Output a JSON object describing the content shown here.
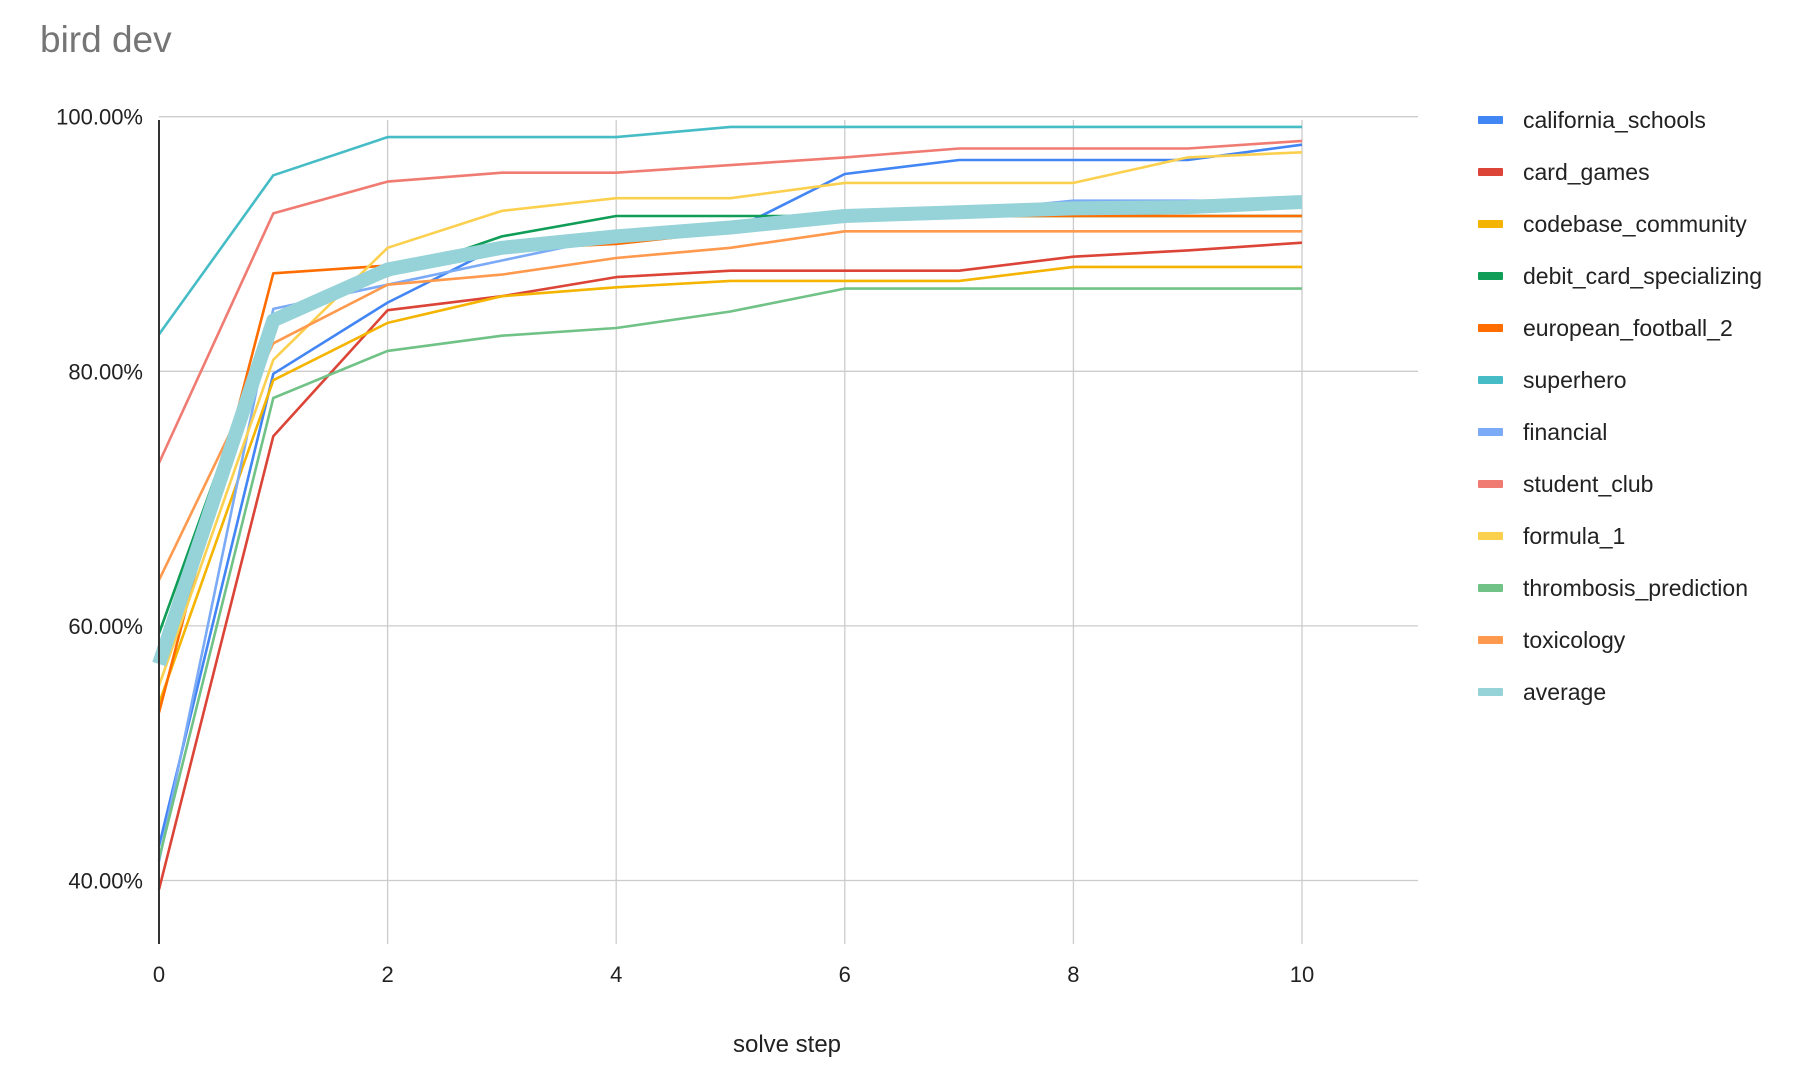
{
  "chart_data": {
    "type": "line",
    "title": "bird dev",
    "xlabel": "solve step",
    "ylabel": "",
    "xlim": [
      0,
      11
    ],
    "ylim": [
      35,
      100
    ],
    "x_ticks": [
      0,
      2,
      4,
      6,
      8,
      10
    ],
    "x_tick_labels": [
      "0",
      "2",
      "4",
      "6",
      "8",
      "10"
    ],
    "y_ticks": [
      40,
      60,
      80,
      100
    ],
    "y_tick_labels": [
      "40.00%",
      "60.00%",
      "80.00%",
      "100.00%"
    ],
    "grid": true,
    "legend_position": "right",
    "x": [
      0,
      1,
      2,
      3,
      4,
      5,
      6,
      7,
      8,
      9,
      10
    ],
    "series": [
      {
        "name": "california_schools",
        "color": "#4285f4",
        "values": [
          42.7,
          79.8,
          85.4,
          89.9,
          90.4,
          91.0,
          95.5,
          96.6,
          96.6,
          96.6,
          97.8
        ]
      },
      {
        "name": "card_games",
        "color": "#db4437",
        "values": [
          39.3,
          74.9,
          84.8,
          85.9,
          87.4,
          87.9,
          87.9,
          87.9,
          89.0,
          89.5,
          90.1
        ]
      },
      {
        "name": "codebase_community",
        "color": "#f4b400",
        "values": [
          53.9,
          79.3,
          83.8,
          85.9,
          86.6,
          87.1,
          87.1,
          87.1,
          88.2,
          88.2,
          88.2
        ]
      },
      {
        "name": "debit_card_specializing",
        "color": "#0f9d58",
        "values": [
          59.4,
          84.4,
          87.5,
          90.6,
          92.2,
          92.2,
          92.2,
          92.2,
          92.2,
          92.2,
          92.2
        ]
      },
      {
        "name": "european_football_2",
        "color": "#ff6d01",
        "values": [
          53.2,
          87.7,
          88.3,
          89.6,
          90.0,
          91.0,
          92.2,
          92.2,
          92.2,
          92.2,
          92.2
        ]
      },
      {
        "name": "superhero",
        "color": "#46bdc6",
        "values": [
          82.9,
          95.4,
          98.4,
          98.4,
          98.4,
          99.2,
          99.2,
          99.2,
          99.2,
          99.2,
          99.2
        ]
      },
      {
        "name": "financial",
        "color": "#7baaf7",
        "values": [
          41.5,
          84.9,
          86.8,
          88.7,
          90.6,
          91.5,
          92.5,
          92.5,
          93.4,
          93.4,
          93.4
        ]
      },
      {
        "name": "student_club",
        "color": "#f07b72",
        "values": [
          72.8,
          92.4,
          94.9,
          95.6,
          95.6,
          96.2,
          96.8,
          97.5,
          97.5,
          97.5,
          98.1
        ]
      },
      {
        "name": "formula_1",
        "color": "#fcd04f",
        "values": [
          55.3,
          80.9,
          89.7,
          92.6,
          93.6,
          93.6,
          94.8,
          94.8,
          94.8,
          96.8,
          97.2
        ]
      },
      {
        "name": "thrombosis_prediction",
        "color": "#71c287",
        "values": [
          41.7,
          77.9,
          81.6,
          82.8,
          83.4,
          84.7,
          86.5,
          86.5,
          86.5,
          86.5,
          86.5
        ]
      },
      {
        "name": "toxicology",
        "color": "#ff994d",
        "values": [
          63.6,
          82.2,
          86.8,
          87.6,
          88.9,
          89.7,
          91.0,
          91.0,
          91.0,
          91.0,
          91.0
        ]
      },
      {
        "name": "average",
        "color": "#95d3d8",
        "thick": true,
        "values": [
          57.0,
          84.0,
          88.0,
          89.7,
          90.6,
          91.3,
          92.2,
          92.5,
          92.8,
          92.9,
          93.3
        ]
      }
    ]
  }
}
